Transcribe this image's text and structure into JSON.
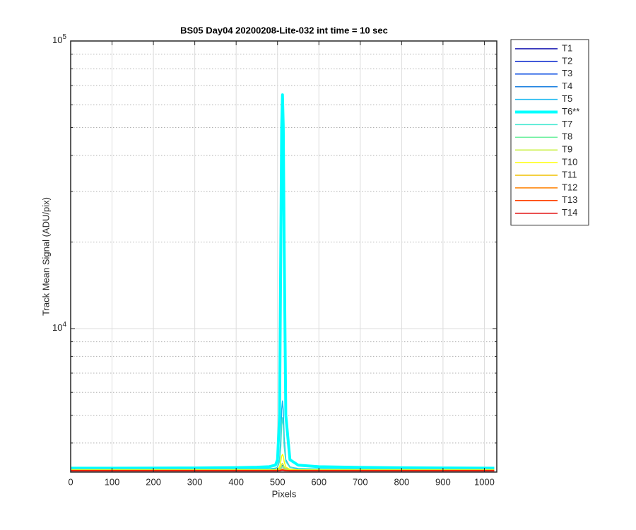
{
  "chart_data": {
    "type": "line",
    "title": "BS05 Day04 20200208-Lite-032 int time = 10 sec",
    "x_label": "Pixels",
    "y_label": "Track Mean Signal (ADU/pix)",
    "log_y": true,
    "grid": true,
    "legend_position": "outside-right",
    "xlim": [
      0,
      1030
    ],
    "xticks": [
      0,
      100,
      200,
      300,
      400,
      500,
      600,
      700,
      800,
      900,
      1000
    ],
    "ylim": [
      3170,
      100000
    ],
    "yticks": [
      {
        "value": 10000,
        "label": "10^4"
      },
      {
        "value": 100000,
        "label": "10^5"
      }
    ],
    "yminorticks": [
      4000,
      5000,
      6000,
      7000,
      8000,
      9000,
      20000,
      30000,
      40000,
      50000,
      60000,
      70000,
      80000,
      90000
    ],
    "x": [
      1,
      100,
      200,
      300,
      400,
      450,
      480,
      495,
      500,
      505,
      508,
      510,
      512,
      514,
      516,
      520,
      530,
      550,
      600,
      700,
      800,
      900,
      1024
    ],
    "series": [
      {
        "name": "T1",
        "color": "#0000aa",
        "linewidth": 1.5,
        "values": [
          3240,
          3240,
          3240,
          3240,
          3240,
          3240,
          3240,
          3240,
          3240,
          3250,
          3270,
          3300,
          3320,
          3300,
          3270,
          3250,
          3240,
          3240,
          3240,
          3240,
          3240,
          3240,
          3240
        ]
      },
      {
        "name": "T2",
        "color": "#0020cc",
        "linewidth": 1.5,
        "values": [
          3235,
          3235,
          3235,
          3235,
          3235,
          3235,
          3235,
          3235,
          3235,
          3245,
          3265,
          3295,
          3315,
          3295,
          3265,
          3245,
          3235,
          3235,
          3235,
          3235,
          3235,
          3235,
          3235
        ]
      },
      {
        "name": "T3",
        "color": "#0045e0",
        "linewidth": 1.5,
        "values": [
          3232,
          3232,
          3232,
          3232,
          3232,
          3232,
          3232,
          3232,
          3232,
          3245,
          3270,
          3310,
          3340,
          3310,
          3270,
          3245,
          3232,
          3232,
          3232,
          3232,
          3232,
          3232,
          3232
        ]
      },
      {
        "name": "T4",
        "color": "#1a80e0",
        "linewidth": 1.5,
        "values": [
          3238,
          3238,
          3238,
          3238,
          3238,
          3238,
          3238,
          3238,
          3240,
          3260,
          3300,
          3360,
          3400,
          3360,
          3300,
          3260,
          3240,
          3238,
          3238,
          3238,
          3238,
          3238,
          3238
        ]
      },
      {
        "name": "T5",
        "color": "#1ab8f0",
        "linewidth": 1.5,
        "values": [
          3245,
          3245,
          3245,
          3245,
          3245,
          3248,
          3255,
          3270,
          3300,
          3500,
          4200,
          5200,
          5600,
          5200,
          4200,
          3500,
          3300,
          3260,
          3250,
          3245,
          3245,
          3245,
          3245
        ]
      },
      {
        "name": "T6**",
        "color": "#00ffff",
        "linewidth": 4,
        "values": [
          3270,
          3270,
          3272,
          3275,
          3285,
          3295,
          3310,
          3350,
          3500,
          5000,
          20000,
          50000,
          65000,
          50000,
          20000,
          5000,
          3500,
          3350,
          3310,
          3290,
          3280,
          3275,
          3270
        ]
      },
      {
        "name": "T7",
        "color": "#40e8d0",
        "linewidth": 1.5,
        "values": [
          3250,
          3250,
          3250,
          3250,
          3250,
          3252,
          3258,
          3270,
          3290,
          3450,
          3900,
          4600,
          4900,
          4600,
          3900,
          3450,
          3290,
          3262,
          3255,
          3250,
          3250,
          3250,
          3250
        ]
      },
      {
        "name": "T8",
        "color": "#70f0a0",
        "linewidth": 1.5,
        "values": [
          3228,
          3228,
          3228,
          3228,
          3228,
          3228,
          3228,
          3228,
          3230,
          3245,
          3270,
          3300,
          3320,
          3300,
          3270,
          3245,
          3230,
          3228,
          3228,
          3228,
          3228,
          3228,
          3228
        ]
      },
      {
        "name": "T9",
        "color": "#c8f040",
        "linewidth": 1.5,
        "values": [
          3225,
          3225,
          3225,
          3225,
          3225,
          3225,
          3225,
          3225,
          3228,
          3250,
          3300,
          3360,
          3400,
          3360,
          3300,
          3250,
          3228,
          3225,
          3225,
          3225,
          3225,
          3225,
          3225
        ]
      },
      {
        "name": "T10",
        "color": "#ffff00",
        "linewidth": 1.5,
        "values": [
          3222,
          3222,
          3222,
          3222,
          3222,
          3222,
          3222,
          3225,
          3240,
          3300,
          3450,
          3600,
          3650,
          3600,
          3450,
          3300,
          3240,
          3225,
          3222,
          3222,
          3222,
          3222,
          3222
        ]
      },
      {
        "name": "T11",
        "color": "#f0c000",
        "linewidth": 1.5,
        "values": [
          3215,
          3215,
          3215,
          3215,
          3215,
          3215,
          3215,
          3215,
          3215,
          3220,
          3230,
          3240,
          3250,
          3240,
          3230,
          3220,
          3215,
          3215,
          3215,
          3215,
          3215,
          3215,
          3215
        ]
      },
      {
        "name": "T12",
        "color": "#ff8000",
        "linewidth": 1.5,
        "values": [
          3210,
          3210,
          3210,
          3210,
          3210,
          3210,
          3210,
          3210,
          3210,
          3215,
          3222,
          3230,
          3235,
          3230,
          3222,
          3215,
          3210,
          3210,
          3210,
          3210,
          3210,
          3210,
          3210
        ]
      },
      {
        "name": "T13",
        "color": "#ff4000",
        "linewidth": 1.5,
        "values": [
          3205,
          3205,
          3205,
          3205,
          3205,
          3205,
          3205,
          3205,
          3205,
          3208,
          3212,
          3218,
          3222,
          3218,
          3212,
          3208,
          3205,
          3205,
          3205,
          3205,
          3205,
          3205,
          3205
        ]
      },
      {
        "name": "T14",
        "color": "#e00000",
        "linewidth": 1.5,
        "values": [
          3200,
          3200,
          3200,
          3200,
          3200,
          3200,
          3200,
          3200,
          3200,
          3203,
          3207,
          3212,
          3215,
          3212,
          3207,
          3203,
          3200,
          3200,
          3200,
          3200,
          3200,
          3200,
          3200
        ]
      }
    ]
  }
}
